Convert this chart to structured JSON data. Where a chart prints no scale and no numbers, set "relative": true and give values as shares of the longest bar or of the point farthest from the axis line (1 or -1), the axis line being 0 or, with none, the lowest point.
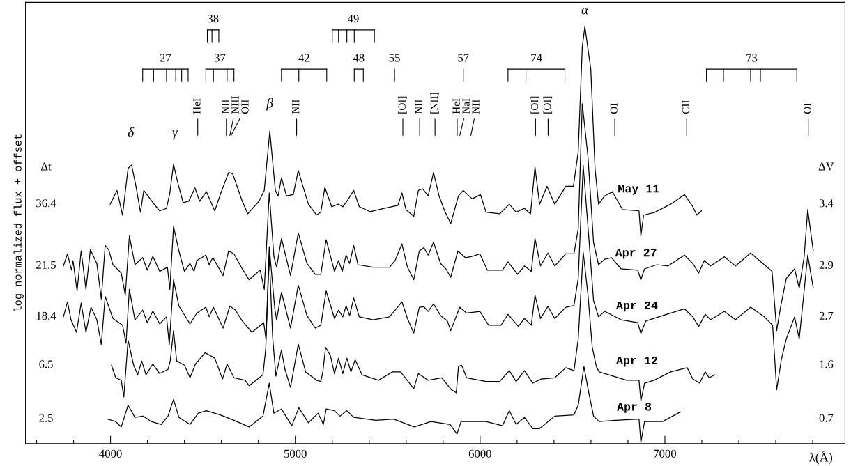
{
  "chart_data": {
    "type": "line",
    "relative": true,
    "xlabel": "λ(Å)",
    "ylabel": "log normalized flux + offset",
    "xlim": [
      3540,
      7975
    ],
    "xticks": [
      {
        "value": 3600,
        "label": null
      },
      {
        "value": 3800,
        "label": null
      },
      4000,
      {
        "value": 4200,
        "label": null
      },
      {
        "value": 4400,
        "label": null
      },
      {
        "value": 4600,
        "label": null
      },
      {
        "value": 4800,
        "label": null
      },
      5000,
      {
        "value": 5200,
        "label": null
      },
      {
        "value": 5400,
        "label": null
      },
      {
        "value": 5600,
        "label": null
      },
      {
        "value": 5800,
        "label": null
      },
      6000,
      {
        "value": 6200,
        "label": null
      },
      {
        "value": 6400,
        "label": null
      },
      {
        "value": 6600,
        "label": null
      },
      {
        "value": 6800,
        "label": null
      },
      7000,
      {
        "value": 7200,
        "label": null
      },
      {
        "value": 7400,
        "label": null
      },
      {
        "value": 7600,
        "label": null
      },
      {
        "value": 7800,
        "label": null
      }
    ],
    "series": [
      {
        "name": "May 11",
        "color": "#000000",
        "x": [
          3998,
          4035,
          4065,
          4095,
          4114,
          4139,
          4162,
          4180,
          4236,
          4266,
          4303,
          4321,
          4341,
          4363,
          4393,
          4423,
          4457,
          4482,
          4519,
          4564,
          4597,
          4639,
          4661,
          4713,
          4743,
          4803,
          4832,
          4862,
          4892,
          4907,
          4925,
          4952,
          4989,
          5016,
          5041,
          5071,
          5115,
          5138,
          5160,
          5197,
          5234,
          5257,
          5279,
          5316,
          5346,
          5406,
          5480,
          5555,
          5577,
          5599,
          5641,
          5666,
          5689,
          5719,
          5748,
          5778,
          5808,
          5841,
          5883,
          5909,
          5957,
          6002,
          6032,
          6106,
          6158,
          6195,
          6240,
          6273,
          6297,
          6322,
          6362,
          6404,
          6464,
          6505,
          6531,
          6553,
          6567,
          6599,
          6622,
          6641,
          6674,
          6716,
          6771,
          6860,
          6870,
          6885,
          6942,
          7031,
          7106,
          7151,
          7173,
          7198
        ],
        "values": [
          0.574,
          0.607,
          0.548,
          0.66,
          0.668,
          0.614,
          0.555,
          0.607,
          0.574,
          0.558,
          0.564,
          0.601,
          0.67,
          0.627,
          0.578,
          0.581,
          0.613,
          0.581,
          0.604,
          0.558,
          0.601,
          0.65,
          0.647,
          0.581,
          0.551,
          0.581,
          0.607,
          0.749,
          0.607,
          0.594,
          0.637,
          0.594,
          0.597,
          0.655,
          0.617,
          0.574,
          0.548,
          0.555,
          0.614,
          0.568,
          0.574,
          0.568,
          0.581,
          0.607,
          0.568,
          0.556,
          0.564,
          0.571,
          0.601,
          0.561,
          0.545,
          0.607,
          0.611,
          0.594,
          0.65,
          0.594,
          0.558,
          0.528,
          0.594,
          0.607,
          0.587,
          0.597,
          0.555,
          0.551,
          0.574,
          0.555,
          0.564,
          0.551,
          0.663,
          0.574,
          0.617,
          0.574,
          0.617,
          0.617,
          0.7,
          0.951,
          1.0,
          0.898,
          0.66,
          0.574,
          0.594,
          0.604,
          0.561,
          0.558,
          0.498,
          0.548,
          0.554,
          0.574,
          0.597,
          0.568,
          0.548,
          0.558
        ]
      },
      {
        "name": "Apr 27",
        "color": "#000000",
        "x": [
          3745,
          3767,
          3789,
          3797,
          3819,
          3841,
          3867,
          3891,
          3926,
          3950,
          3971,
          3990,
          4013,
          4058,
          4080,
          4102,
          4132,
          4174,
          4199,
          4229,
          4266,
          4308,
          4321,
          4341,
          4370,
          4400,
          4430,
          4452,
          4467,
          4516,
          4534,
          4554,
          4609,
          4639,
          4668,
          4713,
          4750,
          4810,
          4832,
          4859,
          4884,
          4899,
          4925,
          4974,
          5016,
          5063,
          5108,
          5138,
          5167,
          5212,
          5234,
          5254,
          5275,
          5294,
          5316,
          5339,
          5421,
          5510,
          5540,
          5577,
          5607,
          5641,
          5671,
          5696,
          5719,
          5748,
          5786,
          5815,
          5841,
          5880,
          5920,
          5957,
          5999,
          6039,
          6121,
          6151,
          6203,
          6240,
          6277,
          6297,
          6327,
          6367,
          6404,
          6464,
          6508,
          6531,
          6553,
          6584,
          6614,
          6641,
          6674,
          6711,
          6763,
          6853,
          6870,
          6890,
          6957,
          7017,
          7106,
          7151,
          7183,
          7213,
          7247,
          7322,
          7382,
          7464,
          7538,
          7580,
          7605,
          7627,
          7657,
          7702,
          7727,
          7754,
          7773,
          7803
        ],
        "values": [
          0.426,
          0.455,
          0.416,
          0.439,
          0.366,
          0.462,
          0.37,
          0.465,
          0.432,
          0.347,
          0.475,
          0.465,
          0.429,
          0.409,
          0.356,
          0.498,
          0.429,
          0.446,
          0.416,
          0.449,
          0.413,
          0.423,
          0.37,
          0.521,
          0.462,
          0.413,
          0.432,
          0.413,
          0.439,
          0.452,
          0.429,
          0.446,
          0.403,
          0.462,
          0.455,
          0.419,
          0.393,
          0.416,
          0.37,
          0.601,
          0.449,
          0.423,
          0.492,
          0.403,
          0.505,
          0.432,
          0.406,
          0.406,
          0.489,
          0.413,
          0.439,
          0.413,
          0.452,
          0.432,
          0.475,
          0.429,
          0.423,
          0.423,
          0.439,
          0.479,
          0.423,
          0.393,
          0.462,
          0.47,
          0.452,
          0.483,
          0.432,
          0.419,
          0.399,
          0.462,
          0.446,
          0.449,
          0.455,
          0.416,
          0.416,
          0.436,
          0.406,
          0.426,
          0.413,
          0.492,
          0.426,
          0.457,
          0.426,
          0.455,
          0.455,
          0.515,
          0.815,
          0.687,
          0.482,
          0.429,
          0.442,
          0.446,
          0.419,
          0.416,
          0.393,
          0.419,
          0.429,
          0.426,
          0.452,
          0.432,
          0.409,
          0.439,
          0.426,
          0.448,
          0.426,
          0.457,
          0.429,
          0.413,
          0.271,
          0.33,
          0.396,
          0.419,
          0.373,
          0.449,
          0.561,
          0.462
        ]
      },
      {
        "name": "Apr 24",
        "color": "#000000",
        "x": [
          3745,
          3767,
          3786,
          3816,
          3841,
          3867,
          3894,
          3926,
          3950,
          3971,
          4013,
          4065,
          4084,
          4102,
          4132,
          4174,
          4199,
          4229,
          4266,
          4303,
          4318,
          4341,
          4370,
          4430,
          4467,
          4516,
          4534,
          4557,
          4609,
          4646,
          4676,
          4713,
          4765,
          4829,
          4841,
          4859,
          4889,
          4899,
          4925,
          4974,
          5016,
          5063,
          5108,
          5138,
          5167,
          5212,
          5234,
          5257,
          5275,
          5294,
          5316,
          5346,
          5421,
          5510,
          5577,
          5607,
          5641,
          5671,
          5696,
          5719,
          5748,
          5786,
          5823,
          5841,
          5890,
          5927,
          5999,
          6046,
          6113,
          6151,
          6207,
          6240,
          6277,
          6297,
          6327,
          6367,
          6404,
          6464,
          6508,
          6531,
          6558,
          6587,
          6614,
          6641,
          6674,
          6763,
          6853,
          6870,
          6897,
          6987,
          7106,
          7151,
          7183,
          7218,
          7247,
          7322,
          7382,
          7464,
          7538,
          7583,
          7605,
          7630,
          7657,
          7702,
          7727,
          7750,
          7773,
          7803
        ],
        "values": [
          0.304,
          0.34,
          0.297,
          0.267,
          0.337,
          0.267,
          0.327,
          0.297,
          0.238,
          0.353,
          0.3,
          0.284,
          0.241,
          0.37,
          0.297,
          0.32,
          0.29,
          0.318,
          0.287,
          0.304,
          0.238,
          0.393,
          0.33,
          0.287,
          0.313,
          0.327,
          0.304,
          0.327,
          0.277,
          0.33,
          0.32,
          0.294,
          0.267,
          0.29,
          0.251,
          0.472,
          0.323,
          0.297,
          0.363,
          0.277,
          0.38,
          0.307,
          0.277,
          0.284,
          0.366,
          0.3,
          0.32,
          0.304,
          0.33,
          0.307,
          0.349,
          0.304,
          0.297,
          0.304,
          0.34,
          0.3,
          0.265,
          0.327,
          0.328,
          0.317,
          0.335,
          0.307,
          0.294,
          0.271,
          0.327,
          0.313,
          0.317,
          0.284,
          0.284,
          0.31,
          0.281,
          0.3,
          0.284,
          0.356,
          0.3,
          0.329,
          0.3,
          0.327,
          0.331,
          0.396,
          0.667,
          0.502,
          0.343,
          0.304,
          0.317,
          0.297,
          0.29,
          0.264,
          0.294,
          0.307,
          0.323,
          0.304,
          0.281,
          0.31,
          0.297,
          0.317,
          0.297,
          0.327,
          0.304,
          0.284,
          0.129,
          0.201,
          0.251,
          0.304,
          0.251,
          0.35,
          0.452,
          0.373
        ]
      },
      {
        "name": "Apr 12",
        "color": "#000000",
        "x": [
          4005,
          4028,
          4058,
          4072,
          4095,
          4125,
          4147,
          4169,
          4192,
          4229,
          4266,
          4311,
          4323,
          4341,
          4358,
          4400,
          4430,
          4460,
          4512,
          4564,
          4606,
          4631,
          4668,
          4728,
          4750,
          4825,
          4840,
          4859,
          4877,
          4895,
          4925,
          4944,
          4974,
          5016,
          5056,
          5115,
          5138,
          5149,
          5164,
          5190,
          5212,
          5234,
          5257,
          5279,
          5301,
          5324,
          5361,
          5450,
          5525,
          5570,
          5641,
          5666,
          5719,
          5793,
          5845,
          5871,
          5883,
          5900,
          5927,
          6032,
          6106,
          6158,
          6195,
          6240,
          6285,
          6330,
          6404,
          6464,
          6508,
          6531,
          6558,
          6584,
          6607,
          6629,
          6644,
          6719,
          6793,
          6860,
          6870,
          6890,
          6942,
          7031,
          7121,
          7151,
          7188,
          7218,
          7240,
          7270
        ],
        "values": [
          0.188,
          0.158,
          0.152,
          0.112,
          0.248,
          0.188,
          0.165,
          0.198,
          0.165,
          0.191,
          0.168,
          0.178,
          0.198,
          0.271,
          0.198,
          0.188,
          0.158,
          0.191,
          0.218,
          0.205,
          0.155,
          0.191,
          0.158,
          0.152,
          0.139,
          0.165,
          0.228,
          0.455,
          0.257,
          0.162,
          0.224,
          0.178,
          0.135,
          0.238,
          0.172,
          0.152,
          0.149,
          0.172,
          0.231,
          0.211,
          0.168,
          0.205,
          0.168,
          0.205,
          0.172,
          0.201,
          0.165,
          0.152,
          0.172,
          0.172,
          0.132,
          0.168,
          0.152,
          0.158,
          0.129,
          0.122,
          0.185,
          0.188,
          0.158,
          0.149,
          0.149,
          0.175,
          0.149,
          0.175,
          0.145,
          0.155,
          0.158,
          0.182,
          0.175,
          0.251,
          0.459,
          0.356,
          0.231,
          0.185,
          0.172,
          0.162,
          0.152,
          0.152,
          0.102,
          0.145,
          0.152,
          0.172,
          0.182,
          0.155,
          0.145,
          0.172,
          0.158,
          0.165
        ]
      },
      {
        "name": "Apr 8",
        "color": "#000000",
        "x": [
          3983,
          4028,
          4058,
          4095,
          4132,
          4177,
          4221,
          4274,
          4311,
          4341,
          4370,
          4430,
          4475,
          4519,
          4594,
          4668,
          4750,
          4825,
          4859,
          4884,
          4925,
          4981,
          5019,
          5071,
          5123,
          5152,
          5167,
          5212,
          5242,
          5279,
          5316,
          5436,
          5532,
          5644,
          5734,
          5838,
          5875,
          5897,
          6032,
          6121,
          6158,
          6195,
          6240,
          6285,
          6322,
          6404,
          6508,
          6531,
          6562,
          6587,
          6614,
          6644,
          6733,
          6860,
          6870,
          6890,
          6987,
          7084
        ],
        "values": [
          0.059,
          0.053,
          0.04,
          0.092,
          0.063,
          0.066,
          0.053,
          0.046,
          0.066,
          0.106,
          0.063,
          0.046,
          0.073,
          0.079,
          0.069,
          0.056,
          0.04,
          0.066,
          0.145,
          0.073,
          0.083,
          0.043,
          0.086,
          0.05,
          0.073,
          0.046,
          0.083,
          0.079,
          0.066,
          0.079,
          0.063,
          0.056,
          0.059,
          0.04,
          0.053,
          0.046,
          0.023,
          0.053,
          0.053,
          0.043,
          0.079,
          0.046,
          0.063,
          0.036,
          0.036,
          0.066,
          0.069,
          0.092,
          0.185,
          0.125,
          0.066,
          0.053,
          0.056,
          0.059,
          0.003,
          0.053,
          0.053,
          0.076
        ]
      }
    ],
    "annotations": [
      "Δt",
      "36.4",
      "21.5",
      "18.4",
      "6.5",
      "2.5",
      "ΔV",
      "3.4",
      "2.9",
      "2.7",
      "1.6",
      "0.7",
      "δ",
      "γ",
      "β",
      "α",
      "HeI",
      "NII",
      "NIII",
      "OII",
      "NII",
      "[OI]",
      "NII",
      "[NII]",
      "HeI",
      "NaI",
      "NII",
      "[OI]",
      "[OI]",
      "OI",
      "CII",
      "OI",
      "27",
      "37",
      "38",
      "42",
      "48",
      "49",
      "55",
      "57",
      "74",
      "73"
    ]
  }
}
